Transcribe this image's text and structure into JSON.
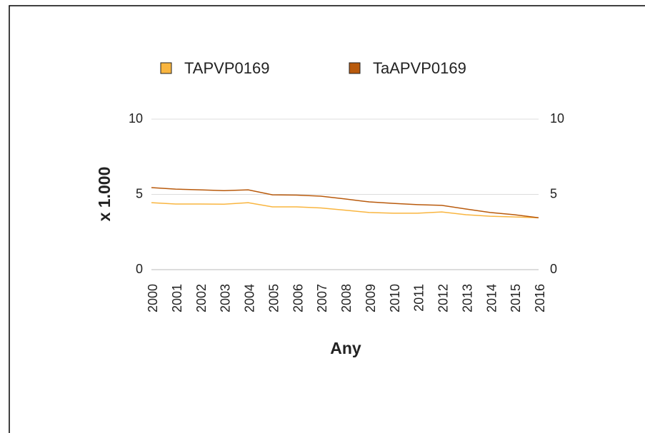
{
  "chart_data": {
    "type": "line",
    "xlabel": "Any",
    "ylabel": "x 1.000",
    "categories": [
      "2000",
      "2001",
      "2002",
      "2003",
      "2004",
      "2005",
      "2006",
      "2007",
      "2008",
      "2009",
      "2010",
      "2011",
      "2012",
      "2013",
      "2014",
      "2015",
      "2016"
    ],
    "series": [
      {
        "name": "TAPVP0169",
        "color": "#f9b53f",
        "values": [
          4.45,
          4.36,
          4.36,
          4.35,
          4.45,
          4.17,
          4.17,
          4.1,
          3.95,
          3.8,
          3.75,
          3.75,
          3.83,
          3.65,
          3.55,
          3.5,
          3.45
        ]
      },
      {
        "name": "TaAPVP0169",
        "color": "#b95a0c",
        "values": [
          5.45,
          5.35,
          5.3,
          5.25,
          5.3,
          4.97,
          4.95,
          4.88,
          4.7,
          4.5,
          4.4,
          4.32,
          4.27,
          4.03,
          3.8,
          3.65,
          3.45
        ]
      }
    ],
    "ylim": [
      0,
      10
    ],
    "yticks": [
      0,
      5,
      10
    ],
    "y2lim": [
      0,
      10
    ],
    "y2ticks": [
      0,
      5,
      10
    ],
    "grid": true,
    "legend": "top"
  }
}
